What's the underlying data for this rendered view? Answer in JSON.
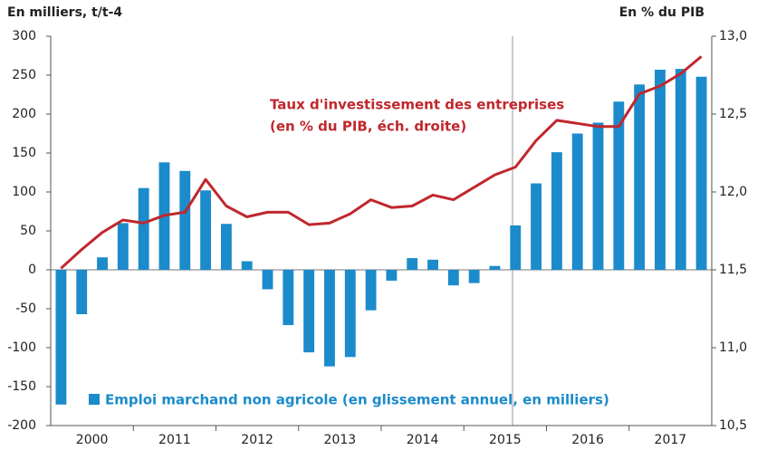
{
  "chart_data": {
    "type": "bar_line",
    "y_label": "En milliers, t/t-4",
    "y2_label": "En % du PIB",
    "categories": [
      null,
      null,
      null,
      null,
      null,
      null,
      null,
      null,
      null,
      null,
      null,
      null,
      null,
      null,
      null,
      null,
      null,
      null,
      null,
      null,
      null,
      null,
      null,
      null,
      null,
      null,
      null,
      null,
      null,
      null,
      null,
      null
    ],
    "year_labels": [
      "2000",
      "2011",
      "2012",
      "2013",
      "2014",
      "2015",
      "2016",
      "2017"
    ],
    "ylim": [
      -200,
      300
    ],
    "yticks": [
      -200,
      -150,
      -100,
      -50,
      0,
      50,
      100,
      150,
      200,
      250,
      300
    ],
    "y2lim": [
      10.5,
      13
    ],
    "y2ticks": [
      {
        "value": 10.5,
        "label": "10,5"
      },
      {
        "value": 11,
        "label": "11,0"
      },
      {
        "value": 11.5,
        "label": "11,5"
      },
      {
        "value": 12,
        "label": "12,0"
      },
      {
        "value": 12.5,
        "label": "12,5"
      },
      {
        "value": 13,
        "label": "13,0"
      }
    ],
    "series": [
      {
        "name": "Emploi marchand non agricole (en glissement annuel, en milliers)",
        "type": "bar",
        "color": "#1b8bcb",
        "values": [
          -173,
          -57,
          16,
          60,
          105,
          138,
          127,
          102,
          59,
          11,
          -25,
          -71,
          -106,
          -124,
          -112,
          -52,
          -14,
          15,
          13,
          -20,
          -17,
          5,
          57,
          111,
          151,
          175,
          189,
          216,
          238,
          257,
          258,
          248
        ]
      },
      {
        "name": "Taux d'investissement des entreprises",
        "type": "line",
        "axis": "y2",
        "color": "#c0272d",
        "values": [
          11.51,
          11.63,
          11.74,
          11.82,
          11.8,
          11.85,
          11.87,
          12.08,
          11.91,
          11.84,
          11.87,
          11.87,
          11.79,
          11.8,
          11.86,
          11.95,
          11.9,
          11.91,
          11.98,
          11.95,
          12.03,
          12.11,
          12.16,
          12.33,
          12.46,
          12.44,
          12.42,
          12.42,
          12.63,
          12.68,
          12.76,
          12.87
        ]
      }
    ],
    "line_note": "(en % du PIB, éch. droite)"
  }
}
